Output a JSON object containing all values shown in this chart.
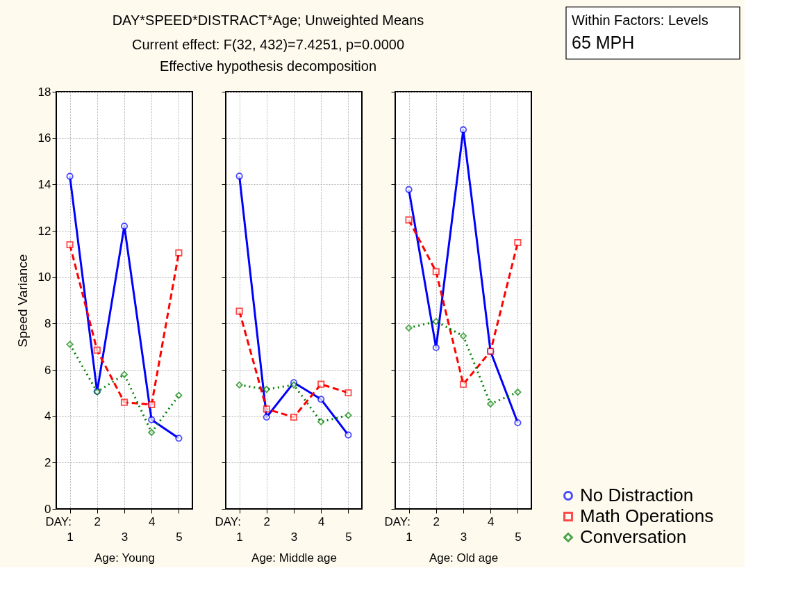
{
  "chart_data": [
    {
      "type": "line",
      "title": "DAY*SPEED*DISTRACT*Age; Unweighted Means",
      "subtitle": "Current effect: F(32, 432)=7.4251, p=0.0000\nEffective hypothesis decomposition",
      "ylabel": "Speed Variance",
      "xlabel": "Age: Young",
      "categories": [
        "1",
        "2",
        "3",
        "4",
        "5"
      ],
      "ylim": [
        0,
        18
      ],
      "yticks": [
        0,
        2,
        4,
        6,
        8,
        10,
        12,
        14,
        16,
        18
      ],
      "grid": true,
      "legend": "right",
      "annotations": [
        "DAY:"
      ],
      "series": [
        {
          "name": "No Distraction",
          "color": "#0000ff",
          "marker": "circle",
          "line_style": "solid",
          "values": [
            14.35,
            5.07,
            12.2,
            3.85,
            3.05
          ]
        },
        {
          "name": "Math Operations",
          "color": "#ff0000",
          "marker": "square",
          "line_style": "dashed",
          "values": [
            11.4,
            6.85,
            4.6,
            4.5,
            11.05
          ]
        },
        {
          "name": "Conversation",
          "color": "#008000",
          "marker": "diamond",
          "line_style": "dotted",
          "values": [
            7.1,
            5.05,
            5.8,
            3.3,
            4.9
          ]
        }
      ]
    },
    {
      "type": "line",
      "xlabel": "Age: Middle age",
      "categories": [
        "1",
        "2",
        "3",
        "4",
        "5"
      ],
      "ylim": [
        0,
        18
      ],
      "yticks": [
        0,
        2,
        4,
        6,
        8,
        10,
        12,
        14,
        16,
        18
      ],
      "grid": true,
      "tick_labels": "x",
      "annotations": [
        "DAY:"
      ],
      "series": [
        {
          "color": "#0000ff",
          "marker": "circle",
          "line_style": "solid",
          "values": [
            14.36,
            3.96,
            5.45,
            4.73,
            3.19
          ]
        },
        {
          "color": "#ff0000",
          "marker": "square",
          "line_style": "dashed",
          "values": [
            8.53,
            4.31,
            3.96,
            5.38,
            5.01
          ]
        },
        {
          "color": "#008000",
          "marker": "diamond",
          "line_style": "dotted",
          "values": [
            5.35,
            5.16,
            5.35,
            3.76,
            4.04
          ]
        }
      ]
    },
    {
      "type": "line",
      "xlabel": "Age: Old age",
      "categories": [
        "1",
        "2",
        "3",
        "4",
        "5"
      ],
      "ylim": [
        0,
        18
      ],
      "yticks": [
        0,
        2,
        4,
        6,
        8,
        10,
        12,
        14,
        16,
        18
      ],
      "grid": true,
      "tick_labels": "x",
      "annotations": [
        "DAY:",
        "Within Factors: Levels",
        "65 MPH"
      ],
      "series": [
        {
          "color": "#0000ff",
          "marker": "circle",
          "line_style": "solid",
          "values": [
            13.78,
            6.96,
            16.36,
            6.8,
            3.72
          ]
        },
        {
          "color": "#ff0000",
          "marker": "square",
          "line_style": "dashed",
          "values": [
            12.47,
            10.24,
            5.38,
            6.8,
            11.49
          ]
        },
        {
          "color": "#008000",
          "marker": "diamond",
          "line_style": "dotted",
          "values": [
            7.81,
            8.09,
            7.46,
            4.53,
            5.04
          ]
        }
      ]
    }
  ]
}
